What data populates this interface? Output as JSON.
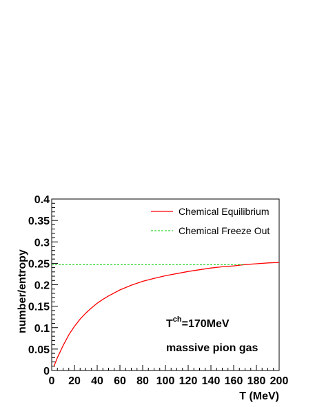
{
  "chart_data": {
    "type": "line",
    "title": "",
    "xlabel": "T (MeV)",
    "ylabel": "number/entropy",
    "xlim": [
      0,
      200
    ],
    "ylim": [
      0,
      0.4
    ],
    "x_ticks": [
      0,
      20,
      40,
      60,
      80,
      100,
      120,
      140,
      160,
      180,
      200
    ],
    "y_ticks": [
      0,
      0.05,
      0.1,
      0.15,
      0.2,
      0.25,
      0.3,
      0.35,
      0.4
    ],
    "x_tick_labels": [
      "0",
      "20",
      "40",
      "60",
      "80",
      "100",
      "120",
      "140",
      "160",
      "180",
      "200"
    ],
    "y_tick_labels": [
      "0",
      "0.05",
      "0.1",
      "0.15",
      "0.2",
      "0.25",
      "0.3",
      "0.35",
      "0.4"
    ],
    "grid": false,
    "legend_position": "top-right",
    "series": [
      {
        "name": "Chemical Equilibrium",
        "color": "#ff0000",
        "style": "solid",
        "x": [
          2,
          5,
          10,
          15,
          20,
          25,
          30,
          35,
          40,
          45,
          50,
          60,
          70,
          80,
          90,
          100,
          110,
          120,
          130,
          140,
          150,
          160,
          170,
          180,
          190,
          200
        ],
        "y": [
          0.01,
          0.03,
          0.058,
          0.083,
          0.103,
          0.12,
          0.134,
          0.146,
          0.157,
          0.166,
          0.174,
          0.188,
          0.199,
          0.208,
          0.215,
          0.221,
          0.226,
          0.231,
          0.235,
          0.239,
          0.242,
          0.244,
          0.247,
          0.249,
          0.251,
          0.252
        ]
      },
      {
        "name": "Chemical Freeze Out",
        "color": "#00cc00",
        "style": "dashed",
        "x": [
          0,
          170
        ],
        "y": [
          0.247,
          0.247
        ]
      }
    ],
    "annotations": [
      {
        "text_main": "T",
        "text_sup": "ch",
        "text_rest": "=170MeV"
      },
      {
        "text": "massive pion gas"
      }
    ]
  }
}
